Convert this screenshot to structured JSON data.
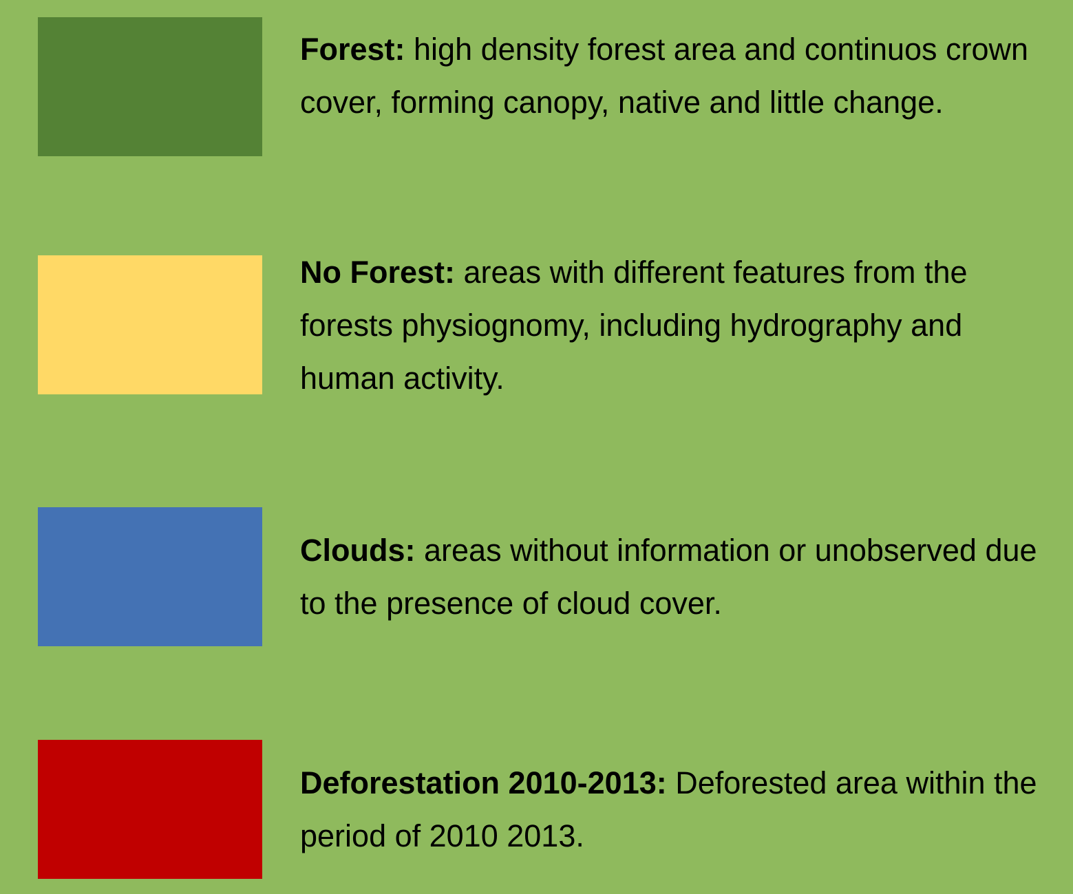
{
  "legend": {
    "items": [
      {
        "label": "Forest:",
        "description": "high density forest area and continuos crown cover, forming canopy, native and little change.",
        "color": "#548235"
      },
      {
        "label": "No Forest:",
        "description": "areas with different features from the forests physiognomy, including hydrography and human activity.",
        "color": "#ffd966"
      },
      {
        "label": "Clouds:",
        "description": "areas without information or unobserved due to the presence of cloud cover.",
        "color": "#4472b4"
      },
      {
        "label": "Deforestation 2010-2013:",
        "description": "Deforested area within the period of 2010 2013.",
        "color": "#c00000"
      }
    ]
  }
}
